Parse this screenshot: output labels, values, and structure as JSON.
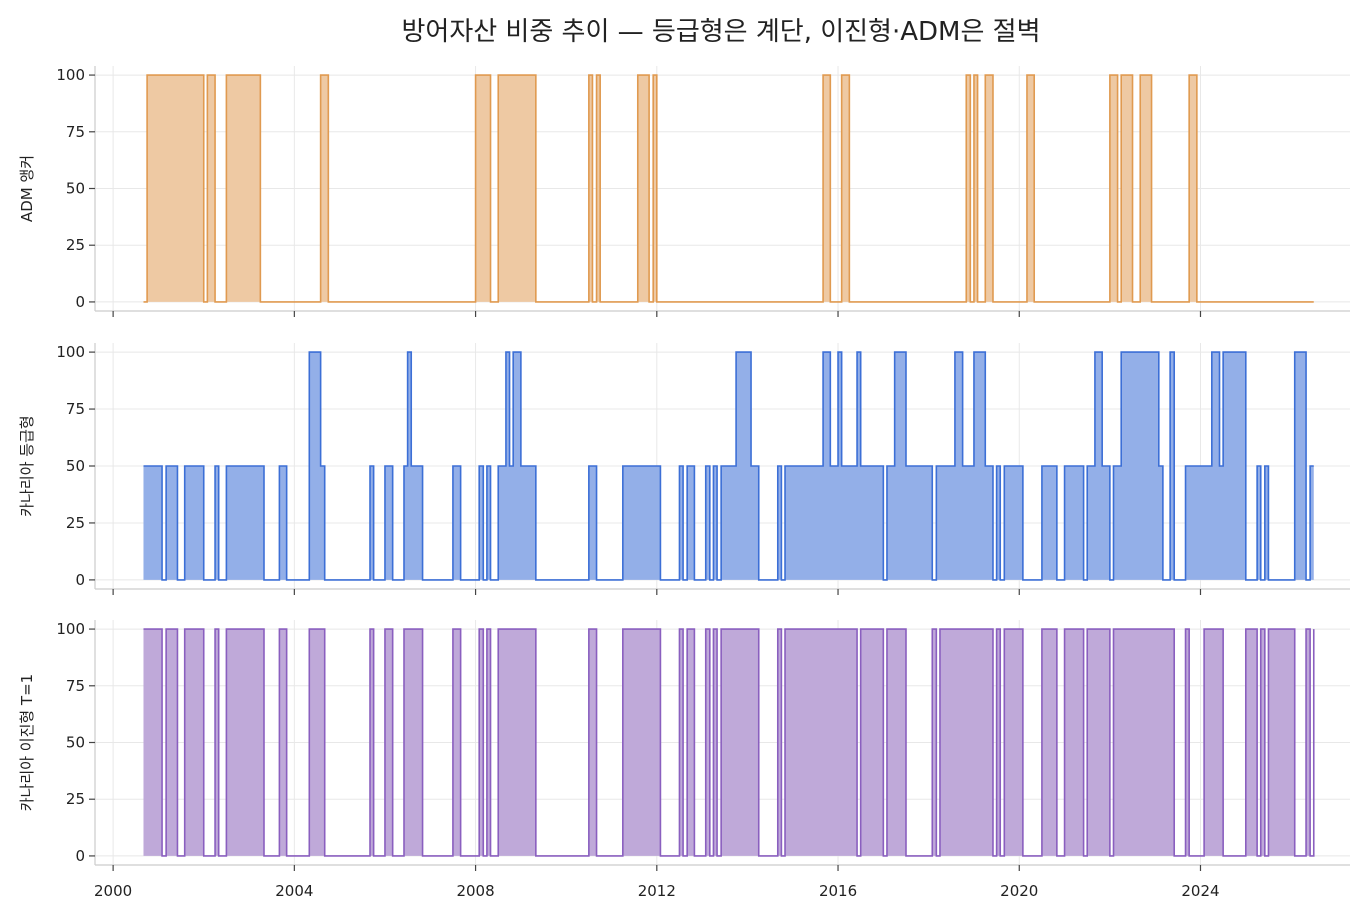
{
  "title": "방어자산 비중 추이 — 등급형은 계단, 이진형·ADM은 절벽",
  "x_ticks": [
    "2000",
    "2004",
    "2008",
    "2012",
    "2016",
    "2020",
    "2024"
  ],
  "y_ticks": [
    "0",
    "25",
    "50",
    "75",
    "100"
  ],
  "chart_data": [
    {
      "type": "area",
      "series": [
        {
          "name": "ADM 앵커",
          "step": "post"
        }
      ],
      "ylabel": "ADM 앵커",
      "color": "#E09A50",
      "fill": "#EEC9A3",
      "xlim": [
        1999.6,
        2027.3
      ],
      "ylim": [
        -4,
        104
      ],
      "x_ticks": [
        2000,
        2004,
        2008,
        2012,
        2016,
        2020,
        2024
      ],
      "y_ticks": [
        0,
        25,
        50,
        75,
        100
      ],
      "grid": true,
      "x": [
        2000.67,
        2000.75,
        2002.0,
        2002.08,
        2002.25,
        2002.5,
        2003.25,
        2004.58,
        2004.75,
        2008.0,
        2008.33,
        2008.5,
        2009.33,
        2010.5,
        2010.58,
        2010.67,
        2010.75,
        2011.58,
        2011.83,
        2011.92,
        2012.0,
        2015.67,
        2015.83,
        2016.08,
        2016.25,
        2018.83,
        2018.92,
        2019.0,
        2019.08,
        2019.25,
        2019.42,
        2020.17,
        2020.33,
        2022.0,
        2022.17,
        2022.25,
        2022.5,
        2022.67,
        2022.92,
        2023.75,
        2023.92,
        2026.5
      ],
      "values": [
        0,
        100,
        0,
        100,
        0,
        100,
        0,
        100,
        0,
        100,
        0,
        100,
        0,
        100,
        0,
        100,
        0,
        100,
        0,
        100,
        0,
        100,
        0,
        100,
        0,
        100,
        0,
        100,
        0,
        100,
        0,
        100,
        0,
        100,
        0,
        100,
        0,
        100,
        0,
        100,
        0,
        0
      ]
    },
    {
      "type": "area",
      "series": [
        {
          "name": "카나리아 등급형",
          "step": "post"
        }
      ],
      "ylabel": "카나리아 등급형",
      "color": "#3C6FD6",
      "fill": "#93AFE8",
      "xlim": [
        1999.6,
        2027.3
      ],
      "ylim": [
        -4,
        104
      ],
      "x_ticks": [
        2000,
        2004,
        2008,
        2012,
        2016,
        2020,
        2024
      ],
      "y_ticks": [
        0,
        25,
        50,
        75,
        100
      ],
      "grid": true,
      "x": [
        2000.67,
        2001.08,
        2001.17,
        2001.42,
        2001.58,
        2002.0,
        2002.25,
        2002.33,
        2002.5,
        2003.08,
        2003.17,
        2003.33,
        2003.67,
        2003.83,
        2004.33,
        2004.58,
        2004.67,
        2005.67,
        2005.75,
        2006.0,
        2006.17,
        2006.42,
        2006.5,
        2006.58,
        2006.83,
        2007.5,
        2007.67,
        2008.08,
        2008.17,
        2008.25,
        2008.33,
        2008.5,
        2008.67,
        2008.75,
        2008.83,
        2009.0,
        2009.33,
        2010.5,
        2010.67,
        2011.25,
        2011.58,
        2012.08,
        2012.5,
        2012.58,
        2012.67,
        2012.83,
        2013.08,
        2013.17,
        2013.25,
        2013.33,
        2013.42,
        2013.75,
        2014.08,
        2014.25,
        2014.67,
        2014.75,
        2014.83,
        2015.25,
        2015.5,
        2015.67,
        2015.83,
        2016.0,
        2016.08,
        2016.25,
        2016.42,
        2016.5,
        2017.0,
        2017.08,
        2017.25,
        2017.5,
        2018.08,
        2018.17,
        2018.25,
        2018.58,
        2018.75,
        2019.0,
        2019.25,
        2019.42,
        2019.5,
        2019.58,
        2019.67,
        2020.08,
        2020.5,
        2020.75,
        2020.83,
        2021.0,
        2021.42,
        2021.5,
        2021.67,
        2021.83,
        2022.0,
        2022.08,
        2022.25,
        2022.58,
        2022.92,
        2023.08,
        2023.17,
        2023.33,
        2023.42,
        2023.67,
        2023.75,
        2024.0,
        2024.25,
        2024.42,
        2024.5,
        2025.0,
        2025.25,
        2025.33,
        2025.42,
        2025.5,
        2026.08,
        2026.33,
        2026.42,
        2026.5
      ],
      "values": [
        50,
        0,
        50,
        0,
        50,
        0,
        50,
        0,
        50,
        50,
        50,
        0,
        50,
        0,
        100,
        50,
        0,
        50,
        0,
        50,
        0,
        50,
        100,
        50,
        0,
        50,
        0,
        50,
        0,
        50,
        0,
        50,
        100,
        50,
        100,
        50,
        0,
        50,
        0,
        50,
        50,
        0,
        50,
        0,
        50,
        0,
        50,
        0,
        50,
        0,
        50,
        100,
        50,
        0,
        50,
        0,
        50,
        50,
        50,
        100,
        50,
        100,
        50,
        50,
        100,
        50,
        0,
        50,
        100,
        50,
        0,
        50,
        50,
        100,
        50,
        100,
        50,
        0,
        50,
        0,
        50,
        0,
        50,
        50,
        0,
        50,
        0,
        50,
        100,
        50,
        0,
        50,
        100,
        100,
        100,
        50,
        0,
        100,
        0,
        50,
        50,
        50,
        100,
        50,
        100,
        0,
        50,
        0,
        50,
        0,
        100,
        0,
        50,
        50
      ]
    },
    {
      "type": "area",
      "series": [
        {
          "name": "카나리아 이진형 T=1",
          "step": "post"
        }
      ],
      "ylabel": "카나리아 이진형 T=1",
      "color": "#8A5FBF",
      "fill": "#BFA9D9",
      "xlim": [
        1999.6,
        2027.3
      ],
      "ylim": [
        -4,
        104
      ],
      "x_ticks": [
        2000,
        2004,
        2008,
        2012,
        2016,
        2020,
        2024
      ],
      "y_ticks": [
        0,
        25,
        50,
        75,
        100
      ],
      "grid": true,
      "x": [
        2000.67,
        2001.08,
        2001.17,
        2001.42,
        2001.58,
        2002.0,
        2002.25,
        2002.33,
        2002.5,
        2003.08,
        2003.17,
        2003.33,
        2003.67,
        2003.83,
        2004.33,
        2004.67,
        2005.67,
        2005.75,
        2006.0,
        2006.17,
        2006.42,
        2006.83,
        2007.5,
        2007.67,
        2008.08,
        2008.17,
        2008.25,
        2008.33,
        2008.5,
        2009.33,
        2010.5,
        2010.67,
        2011.25,
        2011.58,
        2012.08,
        2012.5,
        2012.58,
        2012.67,
        2012.83,
        2013.08,
        2013.17,
        2013.25,
        2013.33,
        2013.42,
        2013.75,
        2014.08,
        2014.25,
        2014.67,
        2014.75,
        2014.83,
        2015.5,
        2015.67,
        2016.25,
        2016.42,
        2016.5,
        2017.0,
        2017.08,
        2017.5,
        2018.08,
        2018.17,
        2018.25,
        2019.25,
        2019.42,
        2019.5,
        2019.58,
        2019.67,
        2020.08,
        2020.5,
        2020.75,
        2020.83,
        2021.0,
        2021.42,
        2021.5,
        2021.67,
        2021.83,
        2022.0,
        2022.08,
        2023.33,
        2023.42,
        2023.67,
        2023.75,
        2024.08,
        2024.25,
        2024.42,
        2024.5,
        2025.0,
        2025.25,
        2025.33,
        2025.42,
        2025.5,
        2026.08,
        2026.33,
        2026.42,
        2026.5
      ],
      "values": [
        100,
        0,
        100,
        0,
        100,
        0,
        100,
        0,
        100,
        100,
        100,
        0,
        100,
        0,
        100,
        0,
        100,
        0,
        100,
        0,
        100,
        0,
        100,
        0,
        100,
        0,
        100,
        0,
        100,
        0,
        100,
        0,
        100,
        100,
        0,
        100,
        0,
        100,
        0,
        100,
        0,
        100,
        0,
        100,
        100,
        100,
        0,
        100,
        0,
        100,
        100,
        100,
        100,
        0,
        100,
        0,
        100,
        0,
        100,
        0,
        100,
        100,
        0,
        100,
        0,
        100,
        0,
        100,
        100,
        0,
        100,
        0,
        100,
        100,
        100,
        0,
        100,
        100,
        0,
        100,
        0,
        100,
        100,
        100,
        0,
        100,
        0,
        100,
        0,
        100,
        0,
        100,
        0,
        100
      ]
    }
  ]
}
